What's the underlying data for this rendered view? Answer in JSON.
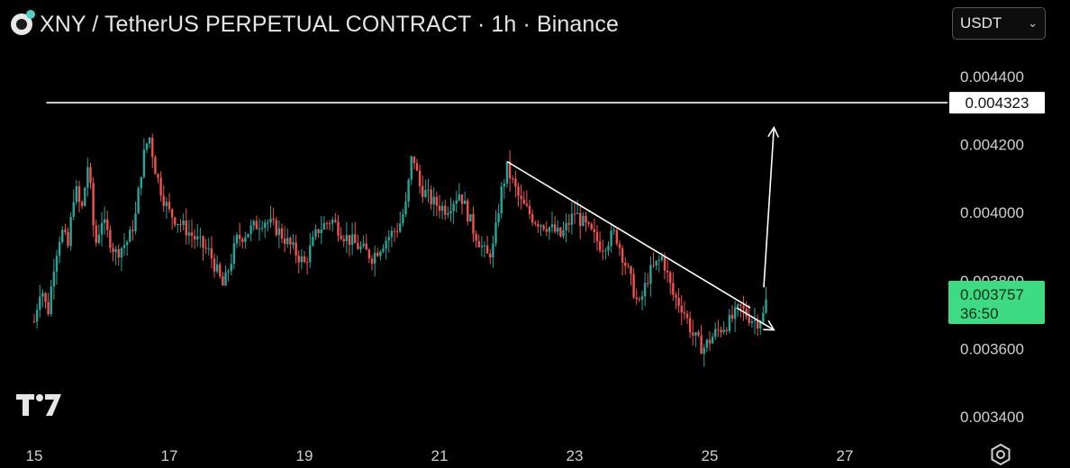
{
  "header": {
    "title": "XNY / TetherUS PERPETUAL CONTRACT · 1h · Binance",
    "currency": "USDT"
  },
  "icons": {
    "logo": "exchange-logo-icon",
    "chevron": "chevron-down-icon",
    "tv": "tradingview-logo-icon",
    "settings": "settings-icon"
  },
  "colors": {
    "background": "#000000",
    "up": "#26a69a",
    "down": "#ef5350",
    "current_price_tag": "#3ddc84",
    "annotation": "#ffffff"
  },
  "chart_data": {
    "type": "candlestick",
    "interval": "1h",
    "x_ticks": [
      "15",
      "17",
      "19",
      "21",
      "23",
      "25",
      "27"
    ],
    "y_ticks": [
      "0.004400",
      "0.004200",
      "0.004000",
      "0.003800",
      "0.003600",
      "0.003400"
    ],
    "ylim": [
      0.00332,
      0.00452
    ],
    "xlim_days": [
      15,
      27.9
    ],
    "resistance_level": {
      "value": "0.004323",
      "price": 0.004323
    },
    "current_price": {
      "value": "0.003757",
      "countdown": "36:50",
      "price": 0.003757
    },
    "trendline": {
      "from": {
        "day": 22.0,
        "price": 0.00415
      },
      "to": {
        "day": 25.6,
        "price": 0.00372
      }
    },
    "projection_arrow_up": {
      "from": {
        "day": 25.8,
        "price": 0.00378
      },
      "to": {
        "day": 25.95,
        "price": 0.00425
      }
    },
    "projection_arrow_down": {
      "from": {
        "day": 25.4,
        "price": 0.00372
      },
      "to": {
        "day": 25.95,
        "price": 0.003655
      }
    },
    "candles_path": [
      [
        15.0,
        0.00368
      ],
      [
        15.1,
        0.00379
      ],
      [
        15.2,
        0.0037
      ],
      [
        15.3,
        0.00386
      ],
      [
        15.4,
        0.00395
      ],
      [
        15.5,
        0.0039
      ],
      [
        15.6,
        0.00408
      ],
      [
        15.7,
        0.004
      ],
      [
        15.8,
        0.00415
      ],
      [
        15.9,
        0.0039
      ],
      [
        16.0,
        0.00398
      ],
      [
        16.2,
        0.00388
      ],
      [
        16.4,
        0.00392
      ],
      [
        16.5,
        0.00399
      ],
      [
        16.6,
        0.00415
      ],
      [
        16.7,
        0.00423
      ],
      [
        16.8,
        0.00412
      ],
      [
        16.9,
        0.00405
      ],
      [
        17.0,
        0.004
      ],
      [
        17.2,
        0.00396
      ],
      [
        17.4,
        0.00392
      ],
      [
        17.6,
        0.00388
      ],
      [
        17.8,
        0.00378
      ],
      [
        18.0,
        0.00392
      ],
      [
        18.2,
        0.00395
      ],
      [
        18.4,
        0.00398
      ],
      [
        18.6,
        0.00395
      ],
      [
        18.8,
        0.0039
      ],
      [
        19.0,
        0.00385
      ],
      [
        19.2,
        0.00395
      ],
      [
        19.4,
        0.00398
      ],
      [
        19.6,
        0.00393
      ],
      [
        19.8,
        0.0039
      ],
      [
        20.0,
        0.00387
      ],
      [
        20.2,
        0.00392
      ],
      [
        20.4,
        0.00396
      ],
      [
        20.5,
        0.00402
      ],
      [
        20.6,
        0.00418
      ],
      [
        20.7,
        0.00408
      ],
      [
        20.9,
        0.00403
      ],
      [
        21.1,
        0.00401
      ],
      [
        21.3,
        0.00406
      ],
      [
        21.5,
        0.00395
      ],
      [
        21.7,
        0.00387
      ],
      [
        21.8,
        0.0039
      ],
      [
        21.9,
        0.00405
      ],
      [
        22.0,
        0.00413
      ],
      [
        22.2,
        0.00403
      ],
      [
        22.4,
        0.00398
      ],
      [
        22.6,
        0.00396
      ],
      [
        22.8,
        0.00393
      ],
      [
        23.0,
        0.004
      ],
      [
        23.2,
        0.00395
      ],
      [
        23.4,
        0.0039
      ],
      [
        23.6,
        0.00394
      ],
      [
        23.8,
        0.00382
      ],
      [
        23.95,
        0.00372
      ],
      [
        24.1,
        0.00382
      ],
      [
        24.3,
        0.00387
      ],
      [
        24.45,
        0.00376
      ],
      [
        24.6,
        0.00372
      ],
      [
        24.75,
        0.00364
      ],
      [
        24.9,
        0.0036
      ],
      [
        25.1,
        0.00365
      ],
      [
        25.3,
        0.00368
      ],
      [
        25.45,
        0.00372
      ],
      [
        25.6,
        0.00369
      ],
      [
        25.7,
        0.00368
      ],
      [
        25.8,
        0.0037
      ],
      [
        25.85,
        0.003757
      ]
    ]
  }
}
